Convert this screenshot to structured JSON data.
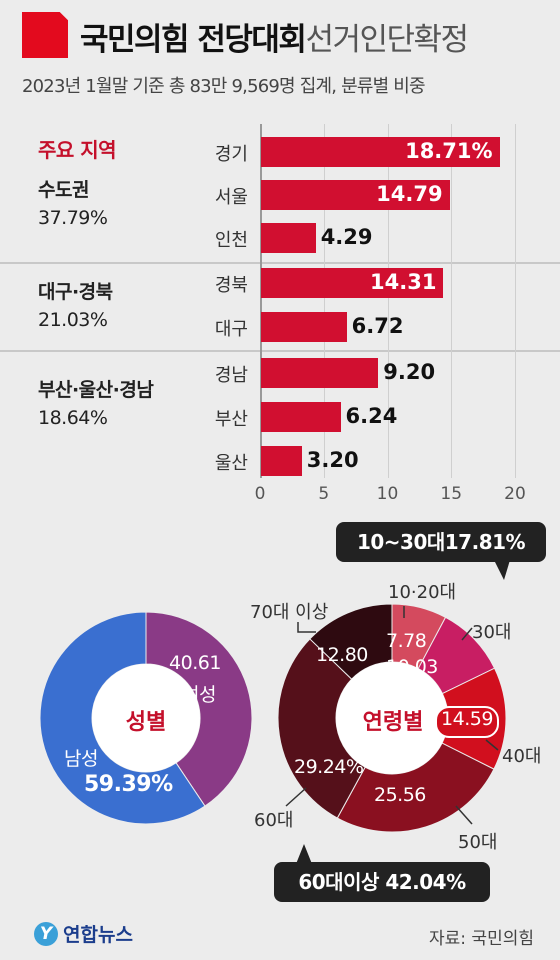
{
  "header": {
    "title_bold": "국민의힘 전당대회",
    "title_light": "선거인단확정",
    "subtitle": "2023년 1월말 기준 총 83만 9,569명 집계, 분류별 비중"
  },
  "colors": {
    "accent": "#e30a1e",
    "bar": "#d10f30",
    "male": "#3a6fd0",
    "female": "#8a3a86"
  },
  "regions": {
    "heading": "주요 지역",
    "groups": [
      {
        "name": "수도권",
        "share": "37.79%"
      },
      {
        "name": "대구·경북",
        "share": "21.03%"
      },
      {
        "name": "부산·울산·경남",
        "share": "18.64%"
      }
    ]
  },
  "chart_data": [
    {
      "type": "bar",
      "orientation": "horizontal",
      "categories": [
        "경기",
        "서울",
        "인천",
        "경북",
        "대구",
        "경남",
        "부산",
        "울산"
      ],
      "values": [
        18.71,
        14.79,
        4.29,
        14.31,
        6.72,
        9.2,
        6.24,
        3.2
      ],
      "value_labels": [
        "18.71%",
        "14.79",
        "4.29",
        "14.31",
        "6.72",
        "9.20",
        "6.24",
        "3.20"
      ],
      "xlim": [
        0,
        20
      ],
      "ticks": [
        0,
        5,
        10,
        15,
        20
      ],
      "grid": true
    },
    {
      "type": "pie",
      "title": "성별",
      "slices": [
        {
          "name": "남성",
          "value": 59.39,
          "label": "59.39%",
          "color": "#3a6fd0"
        },
        {
          "name": "여성",
          "value": 40.61,
          "label": "40.61",
          "color": "#8a3a86"
        }
      ]
    },
    {
      "type": "pie",
      "title": "연령별",
      "slices": [
        {
          "name": "10·20대",
          "value": 7.78,
          "label": "7.78",
          "color": "#d44a5e"
        },
        {
          "name": "30대",
          "value": 10.03,
          "label": "10.03",
          "color": "#c81e63"
        },
        {
          "name": "40대",
          "value": 14.59,
          "label": "14.59",
          "color": "#d10f1e"
        },
        {
          "name": "50대",
          "value": 25.56,
          "label": "25.56",
          "color": "#8a1020"
        },
        {
          "name": "60대",
          "value": 29.24,
          "label": "29.24%",
          "color": "#55101a"
        },
        {
          "name": "70대 이상",
          "value": 12.8,
          "label": "12.80",
          "color": "#2e0a10"
        }
      ],
      "callouts": [
        "10~30대17.81%",
        "60대이상 42.04%"
      ]
    }
  ],
  "logo": "연합뉴스",
  "source": "자료: 국민의힘"
}
